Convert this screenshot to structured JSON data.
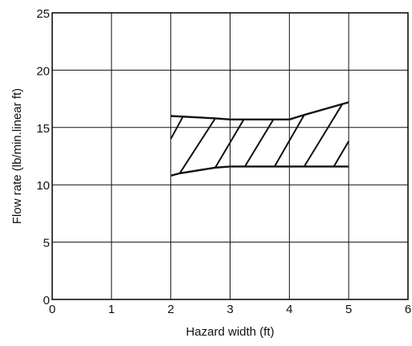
{
  "chart_data": {
    "type": "area",
    "title": "",
    "xlabel": "Hazard width (ft)",
    "ylabel": "Flow rate (lb/min.linear ft)",
    "xlim": [
      0,
      6
    ],
    "ylim": [
      0,
      25
    ],
    "x_ticks": [
      0,
      1,
      2,
      3,
      4,
      5,
      6
    ],
    "y_ticks": [
      0,
      5,
      10,
      15,
      20,
      25
    ],
    "x_tick_labels": [
      "0",
      "1",
      "2",
      "3",
      "4",
      "5",
      "6"
    ],
    "y_tick_labels": [
      "0",
      "5",
      "10",
      "15",
      "20",
      "25"
    ],
    "grid": true,
    "legend": "none",
    "colors": {
      "line": "#111111",
      "grid": "#111111",
      "background": "#ffffff"
    },
    "band": {
      "fill": "diagonal-hatch",
      "upper": {
        "x": [
          2,
          2.75,
          3,
          4,
          4.25,
          5
        ],
        "y": [
          16,
          15.8,
          15.7,
          15.7,
          16.1,
          17.2
        ]
      },
      "lower": {
        "x": [
          2,
          2.15,
          2.75,
          3,
          4,
          5
        ],
        "y": [
          10.8,
          11,
          11.5,
          11.6,
          11.6,
          11.6
        ]
      }
    },
    "hatch_lines": [
      {
        "x": [
          2,
          2.2
        ],
        "y": [
          14,
          15.9
        ]
      },
      {
        "x": [
          2.15,
          2.75
        ],
        "y": [
          11,
          15.8
        ]
      },
      {
        "x": [
          2.75,
          3.23
        ],
        "y": [
          11.5,
          15.7
        ]
      },
      {
        "x": [
          3.25,
          3.73
        ],
        "y": [
          11.6,
          15.7
        ]
      },
      {
        "x": [
          3.75,
          4.25
        ],
        "y": [
          11.6,
          16.1
        ]
      },
      {
        "x": [
          4.25,
          4.9
        ],
        "y": [
          11.6,
          17.1
        ]
      },
      {
        "x": [
          4.75,
          5
        ],
        "y": [
          11.6,
          13.8
        ]
      }
    ]
  }
}
